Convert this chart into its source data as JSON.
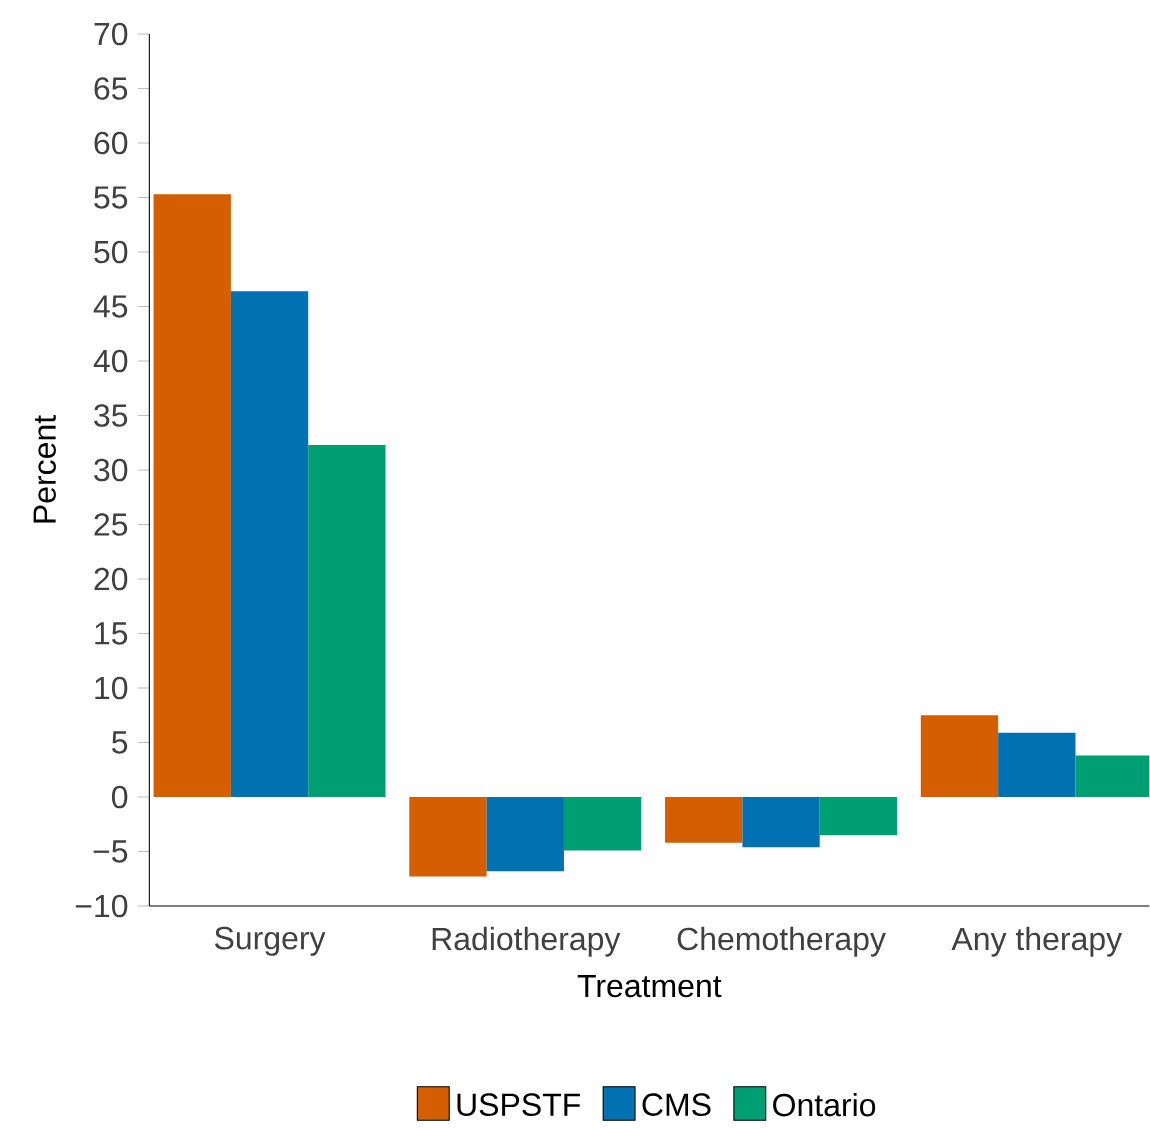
{
  "chart_data": {
    "type": "bar",
    "xlabel": "Treatment",
    "ylabel": "Percent",
    "categories": [
      "Surgery",
      "Radiotherapy",
      "Chemotherapy",
      "Any therapy"
    ],
    "series": [
      {
        "name": "USPSTF",
        "color": "#d55e00",
        "values": [
          55.3,
          -7.3,
          -4.2,
          7.5
        ]
      },
      {
        "name": "CMS",
        "color": "#0072b2",
        "values": [
          46.4,
          -6.8,
          -4.6,
          5.9
        ]
      },
      {
        "name": "Ontario",
        "color": "#009e73",
        "values": [
          32.3,
          -4.9,
          -3.5,
          3.8
        ]
      }
    ],
    "ylim": [
      -10,
      70
    ],
    "yticks": [
      {
        "value": -10,
        "label": "−10"
      },
      {
        "value": -5,
        "label": "−5"
      },
      0,
      5,
      10,
      15,
      20,
      25,
      30,
      35,
      40,
      45,
      50,
      55,
      60,
      65,
      70
    ],
    "legend": "bottom"
  }
}
